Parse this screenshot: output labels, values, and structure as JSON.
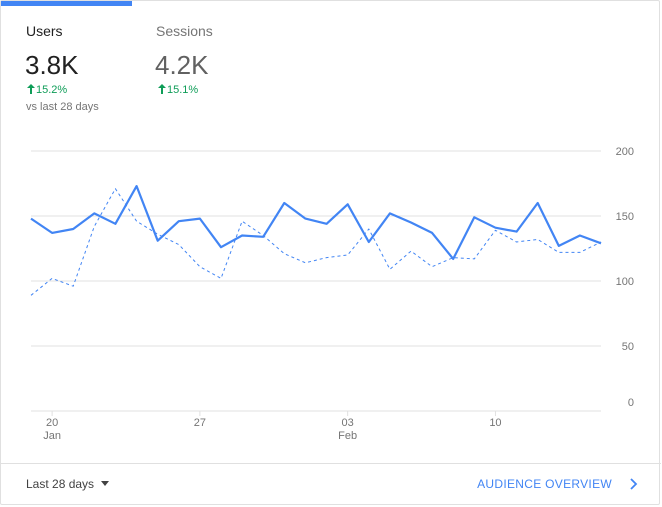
{
  "tabs": [
    {
      "title": "Users",
      "value": "3.8K",
      "change": "15.2%",
      "compare": "vs last 28 days",
      "active": true
    },
    {
      "title": "Sessions",
      "value": "4.2K",
      "change": "15.1%",
      "active": false
    }
  ],
  "colors": {
    "accent": "#4285f4",
    "positive": "#0f9d58",
    "grid": "#e0e0e0"
  },
  "chart_data": {
    "type": "line",
    "ylim": [
      0,
      200
    ],
    "yticks": [
      "200",
      "150",
      "100",
      "50",
      "0"
    ],
    "xticks": [
      {
        "day": "20",
        "month": "Jan"
      },
      {
        "day": "27",
        "month": ""
      },
      {
        "day": "03",
        "month": "Feb"
      },
      {
        "day": "10",
        "month": ""
      }
    ],
    "series": [
      {
        "style": "solid",
        "values": [
          148,
          137,
          140,
          152,
          144,
          173,
          131,
          146,
          148,
          126,
          135,
          134,
          160,
          148,
          144,
          159,
          130,
          152,
          145,
          137,
          117,
          149,
          141,
          138,
          160,
          127,
          135,
          129
        ]
      },
      {
        "style": "dashed",
        "values": [
          89,
          102,
          96,
          142,
          171,
          146,
          136,
          128,
          111,
          102,
          146,
          135,
          121,
          114,
          118,
          120,
          140,
          109,
          123,
          111,
          118,
          117,
          139,
          130,
          132,
          122,
          122,
          130
        ]
      }
    ]
  },
  "footer": {
    "range_label": "Last 28 days",
    "link_label": "AUDIENCE OVERVIEW"
  },
  "icons": {
    "change": "arrow-up-icon",
    "dropdown": "caret-down-icon",
    "link": "chevron-right-icon"
  }
}
